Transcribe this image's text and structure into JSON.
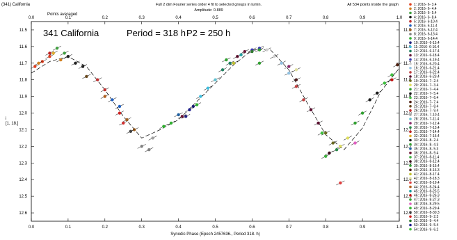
{
  "header": {
    "left": "(341) California",
    "sub_left": "Points averaged",
    "center1": "Full 2 dim Fourier series order 4 fit to selected groups in lumin.",
    "center2": "Amplitude: 0.889",
    "right": "All 534 points inside the graph"
  },
  "chart_data": {
    "type": "scatter",
    "title": "341 California",
    "period_label": "Period = 318 h",
    "p2_label": "P2 = 250 h",
    "xlabel": "Synodic Phase (Epoch 2457636., Period 318. h)",
    "ylabel": "i\n[1, 18.]",
    "xlim": [
      0.0,
      1.0
    ],
    "ylim": [
      12.65,
      11.45
    ],
    "y_inverted": true,
    "grid": false,
    "legend_position": "right",
    "x_ticks": [
      "0.0",
      "0.1",
      "0.2",
      "0.3",
      "0.4",
      "0.5",
      "0.6",
      "0.7",
      "0.8",
      "0.9",
      "1.0"
    ],
    "y_ticks": [
      "11.5",
      "11.6",
      "11.7",
      "11.8",
      "11.9",
      "12.0",
      "12.1",
      "12.2",
      "12.3",
      "12.4",
      "12.5",
      "12.6"
    ],
    "fit_curve": {
      "x": [
        0.0,
        0.05,
        0.1,
        0.15,
        0.2,
        0.25,
        0.3,
        0.35,
        0.4,
        0.45,
        0.5,
        0.55,
        0.6,
        0.65,
        0.7,
        0.75,
        0.8,
        0.85,
        0.9,
        0.95,
        1.0
      ],
      "y": [
        11.76,
        11.69,
        11.66,
        11.72,
        11.86,
        12.02,
        12.15,
        12.1,
        12.04,
        11.93,
        11.82,
        11.71,
        11.62,
        11.62,
        11.74,
        11.94,
        12.13,
        12.22,
        12.09,
        11.87,
        11.73
      ]
    },
    "series": [
      {
        "name": "1: 2016- 6- 3.4",
        "color": "#e04020",
        "x": [
          0.01,
          0.03,
          0.05
        ],
        "y": [
          11.72,
          11.69,
          11.66
        ]
      },
      {
        "name": "2: 2016- 6- 4.4",
        "color": "#d08020",
        "x": [
          0.02,
          0.08
        ],
        "y": [
          11.7,
          11.68
        ]
      },
      {
        "name": "3: 2016- 6- 5.4",
        "color": "#40a040",
        "x": [
          0.07,
          0.09
        ],
        "y": [
          11.61,
          11.64
        ]
      },
      {
        "name": "4: 2016- 6- 8.4",
        "color": "#202020",
        "x": [
          0.12,
          0.14
        ],
        "y": [
          11.7,
          11.72
        ]
      },
      {
        "name": "5: 2016- 6-10.4",
        "color": "#c03030",
        "x": [
          0.18,
          0.2
        ],
        "y": [
          11.8,
          11.86
        ]
      },
      {
        "name": "6: 2016- 6-11.4",
        "color": "#2060c0",
        "x": [
          0.22,
          0.24
        ],
        "y": [
          11.92,
          11.96
        ]
      },
      {
        "name": "7: 2016- 6-12.4",
        "color": "#a06020",
        "x": [
          0.26,
          0.28
        ],
        "y": [
          12.04,
          12.1
        ]
      },
      {
        "name": "8: 2016- 6-13.4",
        "color": "#808080",
        "x": [
          0.3,
          0.32
        ],
        "y": [
          12.2,
          12.22
        ]
      },
      {
        "name": "9: 2016- 6-14.4",
        "color": "#30b030",
        "x": [
          0.36,
          0.38
        ],
        "y": [
          12.08,
          12.06
        ]
      },
      {
        "name": "10: 2016- 6-15.4",
        "color": "#202080",
        "x": [
          0.42,
          0.44
        ],
        "y": [
          12.02,
          11.96
        ]
      },
      {
        "name": "11: 2016- 6-16.4",
        "color": "#40c0e0",
        "x": [
          0.46,
          0.48
        ],
        "y": [
          11.9,
          11.85
        ]
      },
      {
        "name": "12: 2016- 6-17.4",
        "color": "#208060",
        "x": [
          0.52,
          0.54
        ],
        "y": [
          11.74,
          11.7
        ]
      },
      {
        "name": "13: 2016- 6-18.4",
        "color": "#6a1a3a",
        "x": [
          0.56,
          0.58
        ],
        "y": [
          11.66,
          11.63
        ]
      },
      {
        "name": "14: 2016- 6-19.4",
        "color": "#3a3ab0",
        "x": [
          0.6,
          0.62
        ],
        "y": [
          11.62,
          11.61
        ]
      },
      {
        "name": "15: 2016- 6-20.4",
        "color": "#d0d0d0",
        "x": [
          0.64,
          0.66
        ],
        "y": [
          11.62,
          11.66
        ]
      },
      {
        "name": "16: 2016- 6-21.4",
        "color": "#90c0e0",
        "x": [
          0.68,
          0.7
        ],
        "y": [
          11.7,
          11.76
        ]
      },
      {
        "name": "17: 2016- 6-22.4",
        "color": "#c04040",
        "x": [
          0.72,
          0.74
        ],
        "y": [
          11.84,
          11.92
        ]
      },
      {
        "name": "18: 2016- 6-23.4",
        "color": "#5a1030",
        "x": [
          0.76,
          0.78
        ],
        "y": [
          11.98,
          12.06
        ]
      },
      {
        "name": "19: 2016- 7- 2.4",
        "color": "#6a6a20",
        "x": [
          0.8,
          0.82
        ],
        "y": [
          12.12,
          12.18
        ]
      },
      {
        "name": "20: 2016- 7- 3.4",
        "color": "#e0e060",
        "x": [
          0.84,
          0.86
        ],
        "y": [
          12.2,
          12.15
        ]
      },
      {
        "name": "21: 2016- 7- 4.4",
        "color": "#30a030",
        "x": [
          0.88,
          0.9
        ],
        "y": [
          12.06,
          12.0
        ]
      },
      {
        "name": "22: 2016- 7- 5.4",
        "color": "#1a1a1a",
        "x": [
          0.92,
          0.94
        ],
        "y": [
          11.92,
          11.88
        ]
      },
      {
        "name": "23: 2016- 7- 6.4",
        "color": "#40c040",
        "x": [
          0.96,
          0.98
        ],
        "y": [
          11.82,
          11.77
        ]
      },
      {
        "name": "24: 2016- 7- 7.4",
        "color": "#502010",
        "x": [
          0.995
        ],
        "y": [
          11.71
        ]
      },
      {
        "name": "25: 2016- 7- 8.4",
        "color": "#6a4a20",
        "x": [
          0.15
        ],
        "y": [
          11.78
        ]
      },
      {
        "name": "26: 2016- 7- 9.4",
        "color": "#d03030",
        "x": [
          0.25
        ],
        "y": [
          12.06
        ]
      },
      {
        "name": "27: 2016- 7-10.4",
        "color": "#a0a0a0",
        "x": [
          0.33
        ],
        "y": [
          12.15
        ]
      },
      {
        "name": "28: 2016- 7-11.4",
        "color": "#60c0d0",
        "x": [
          0.5
        ],
        "y": [
          11.8
        ]
      },
      {
        "name": "29: 2016- 7-12.4",
        "color": "#8a2a6a",
        "x": [
          0.7
        ],
        "y": [
          11.72
        ]
      },
      {
        "name": "30: 2016- 7-13.4",
        "color": "#2a8a4a",
        "x": [
          0.83
        ],
        "y": [
          12.22
        ]
      },
      {
        "name": "31: 2016- 7-14.4",
        "color": "#c02020",
        "x": [
          0.05
        ],
        "y": [
          11.64
        ]
      },
      {
        "name": "32: 2016- 7-15.4",
        "color": "#e0b030",
        "x": [
          0.06
        ],
        "y": [
          11.64
        ]
      },
      {
        "name": "33: 2016- 8- 2.4",
        "color": "#202020",
        "x": [
          0.1
        ],
        "y": [
          11.66
        ]
      },
      {
        "name": "34: 2016- 8- 4.3",
        "color": "#30a030",
        "x": [
          0.62
        ],
        "y": [
          11.62
        ]
      },
      {
        "name": "35: 2016- 8- 5.3",
        "color": "#2060a0",
        "x": [
          0.4
        ],
        "y": [
          12.01
        ]
      },
      {
        "name": "36: 2016- 8- 9.4",
        "color": "#6a1030",
        "x": [
          0.41
        ],
        "y": [
          12.02
        ]
      },
      {
        "name": "37: 2016- 8-11.4",
        "color": "#40b040",
        "x": [
          0.8
        ],
        "y": [
          12.26
        ]
      },
      {
        "name": "38: 2016- 8-12.4",
        "color": "#3a0a1a",
        "x": [
          0.81
        ],
        "y": [
          12.24
        ]
      },
      {
        "name": "39: 2016- 8-15.4",
        "color": "#30a030",
        "x": [
          0.53
        ],
        "y": [
          11.68
        ]
      },
      {
        "name": "40: 2016- 8-16.3",
        "color": "#4a1a1a",
        "x": [
          0.72
        ],
        "y": [
          11.8
        ]
      },
      {
        "name": "41: 2016- 8-17.4",
        "color": "#c0c030",
        "x": [
          0.55
        ],
        "y": [
          11.7
        ]
      },
      {
        "name": "42: 2016- 8-18.3",
        "color": "#e0e0a0",
        "x": [
          0.72
        ],
        "y": [
          11.74
        ]
      },
      {
        "name": "43: 2016- 8-19.4",
        "color": "#e04040",
        "x": [
          0.84
        ],
        "y": [
          12.42
        ]
      },
      {
        "name": "44: 2016- 8-24.4",
        "color": "#b06020",
        "x": [
          0.2
        ],
        "y": [
          11.9
        ]
      },
      {
        "name": "45: 2016- 8-25.5",
        "color": "#20a0a0",
        "x": [
          0.57
        ],
        "y": [
          11.65
        ]
      },
      {
        "name": "46: 2016- 8-26.3",
        "color": "#c01010",
        "x": [
          0.98
        ],
        "y": [
          11.8
        ]
      },
      {
        "name": "47: 2016- 8-27.3",
        "color": "#30a030",
        "x": [
          0.62
        ],
        "y": [
          11.7
        ]
      },
      {
        "name": "48: 2016- 8-29.5",
        "color": "#e060c0",
        "x": [
          0.88
        ],
        "y": [
          12.18
        ]
      },
      {
        "name": "49: 2016- 8-29.4",
        "color": "#30b030",
        "x": [
          0.45
        ],
        "y": [
          11.95
        ]
      },
      {
        "name": "50: 2016- 8-30.3",
        "color": "#404040",
        "x": [
          0.27
        ],
        "y": [
          12.11
        ]
      },
      {
        "name": "51: 2016- 9- 2.3",
        "color": "#d02020",
        "x": [
          0.24
        ],
        "y": [
          12.0
        ]
      },
      {
        "name": "52: 2016- 9- 4.4",
        "color": "#307a30",
        "x": [
          0.6
        ],
        "y": [
          11.63
        ]
      },
      {
        "name": "53: 2016- 9- 5.4",
        "color": "#202090",
        "x": [
          0.43
        ],
        "y": [
          11.98
        ]
      },
      {
        "name": "54: 2016- 9- 6.2",
        "color": "#40c040",
        "x": [
          0.79
        ],
        "y": [
          12.12
        ]
      }
    ]
  }
}
